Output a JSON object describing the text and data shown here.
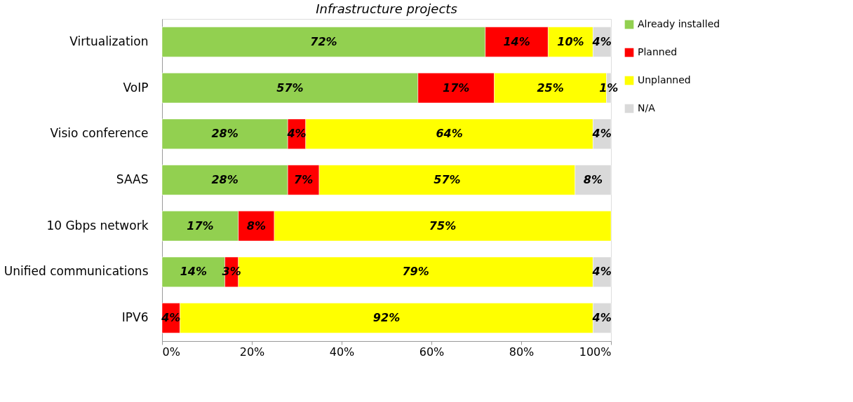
{
  "chart_data": {
    "type": "bar",
    "orientation": "horizontal",
    "stacked": true,
    "title": "Infrastructure projects",
    "categories": [
      "Virtualization",
      "VoIP",
      "Visio conference",
      "SAAS",
      "10 Gbps network",
      "Unified communications",
      "IPV6"
    ],
    "series": [
      {
        "name": "Already installed",
        "color": "#92d050",
        "values": [
          72,
          57,
          28,
          28,
          17,
          14,
          null
        ],
        "value_labels": [
          "72%",
          "57%",
          "28%",
          "28%",
          "17%",
          "14%",
          null
        ]
      },
      {
        "name": "Planned",
        "color": "#ff0000",
        "values": [
          14,
          17,
          4,
          7,
          8,
          3,
          4
        ],
        "value_labels": [
          "14%",
          "17%",
          "4%",
          "7%",
          "8%",
          "3%",
          "4%"
        ]
      },
      {
        "name": "Unplanned",
        "color": "#ffff00",
        "values": [
          10,
          25,
          64,
          57,
          75,
          79,
          92
        ],
        "value_labels": [
          "10%",
          "25%",
          "64%",
          "57%",
          "75%",
          "79%",
          "92%"
        ]
      },
      {
        "name": "N/A",
        "color": "#d9d9d9",
        "values": [
          4,
          1,
          4,
          8,
          null,
          4,
          4
        ],
        "value_labels": [
          "4%",
          "1%",
          "4%",
          "8%",
          null,
          "4%",
          "4%"
        ]
      }
    ],
    "xlim": [
      0,
      100
    ],
    "xticks": [
      {
        "value": 0,
        "label": "0%"
      },
      {
        "value": 20,
        "label": "20%"
      },
      {
        "value": 40,
        "label": "40%"
      },
      {
        "value": 60,
        "label": "60%"
      },
      {
        "value": 80,
        "label": "80%"
      },
      {
        "value": 100,
        "label": "100%"
      }
    ],
    "grid": false,
    "legend": "right"
  }
}
